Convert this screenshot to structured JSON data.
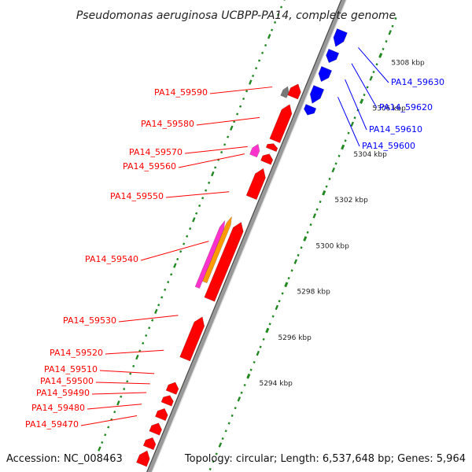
{
  "title": "Pseudomonas aeruginosa UCBPP-PA14, complete genome",
  "accession": "Accession: NC_008463",
  "topology": "Topology: circular; Length: 6,537,648 bp; Genes: 5,964",
  "colors": {
    "forward_gene": "#ff0000",
    "reverse_gene": "#0000ff",
    "highlight_magenta": "#ff33cc",
    "highlight_orange": "#ff9900",
    "highlight_gray": "#777777",
    "backbone": "#999999",
    "tick_green": "#228822"
  },
  "kbp_marks": [
    {
      "label": "5294 kbp",
      "pos": 15
    },
    {
      "label": "5296 kbp",
      "pos": 21
    },
    {
      "label": "5298 kbp",
      "pos": 27
    },
    {
      "label": "5300 kbp",
      "pos": 33
    },
    {
      "label": "5302 kbp",
      "pos": 39
    },
    {
      "label": "5304 kbp",
      "pos": 45
    },
    {
      "label": "5306 kbp",
      "pos": 51
    },
    {
      "label": "5308 kbp",
      "pos": 57
    }
  ],
  "genes_left": [
    {
      "label": "PA14_59590",
      "strand": "forward"
    },
    {
      "label": "PA14_59580",
      "strand": "forward"
    },
    {
      "label": "PA14_59570",
      "strand": "forward"
    },
    {
      "label": "PA14_59560",
      "strand": "forward"
    },
    {
      "label": "PA14_59550",
      "strand": "forward"
    },
    {
      "label": "PA14_59540",
      "strand": "forward"
    },
    {
      "label": "PA14_59530",
      "strand": "forward"
    },
    {
      "label": "PA14_59520",
      "strand": "forward"
    },
    {
      "label": "PA14_59510",
      "strand": "forward"
    },
    {
      "label": "PA14_59500",
      "strand": "forward"
    },
    {
      "label": "PA14_59490",
      "strand": "forward"
    },
    {
      "label": "PA14_59480",
      "strand": "forward"
    },
    {
      "label": "PA14_59470",
      "strand": "forward"
    }
  ],
  "genes_right": [
    {
      "label": "PA14_59630",
      "strand": "reverse"
    },
    {
      "label": "PA14_59620",
      "strand": "reverse"
    },
    {
      "label": "PA14_59610",
      "strand": "reverse"
    },
    {
      "label": "PA14_59600",
      "strand": "reverse"
    }
  ]
}
